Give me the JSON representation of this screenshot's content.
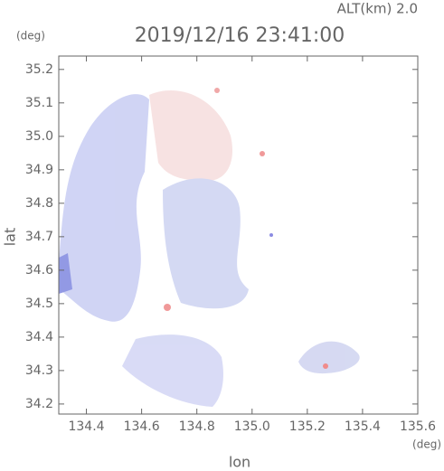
{
  "chart_data": {
    "type": "radar-field",
    "altitude_label": "ALT(km) 2.0",
    "y_unit": "(deg)",
    "title": "2019/12/16 23:41:00",
    "ylabel": "lat",
    "xlabel": "lon",
    "x_unit": "(deg)",
    "xlim": [
      134.3,
      135.6
    ],
    "ylim": [
      34.17,
      35.24
    ],
    "xticks": [
      134.4,
      134.6,
      134.8,
      {
        "value": 135.0,
        "label": "135.0"
      },
      135.2,
      135.4,
      135.6
    ],
    "yticks": [
      35.2,
      35.1,
      {
        "value": 35.0,
        "label": "35.0"
      },
      34.9,
      34.8,
      34.7,
      34.6,
      34.5,
      34.4,
      34.3,
      34.2
    ]
  }
}
